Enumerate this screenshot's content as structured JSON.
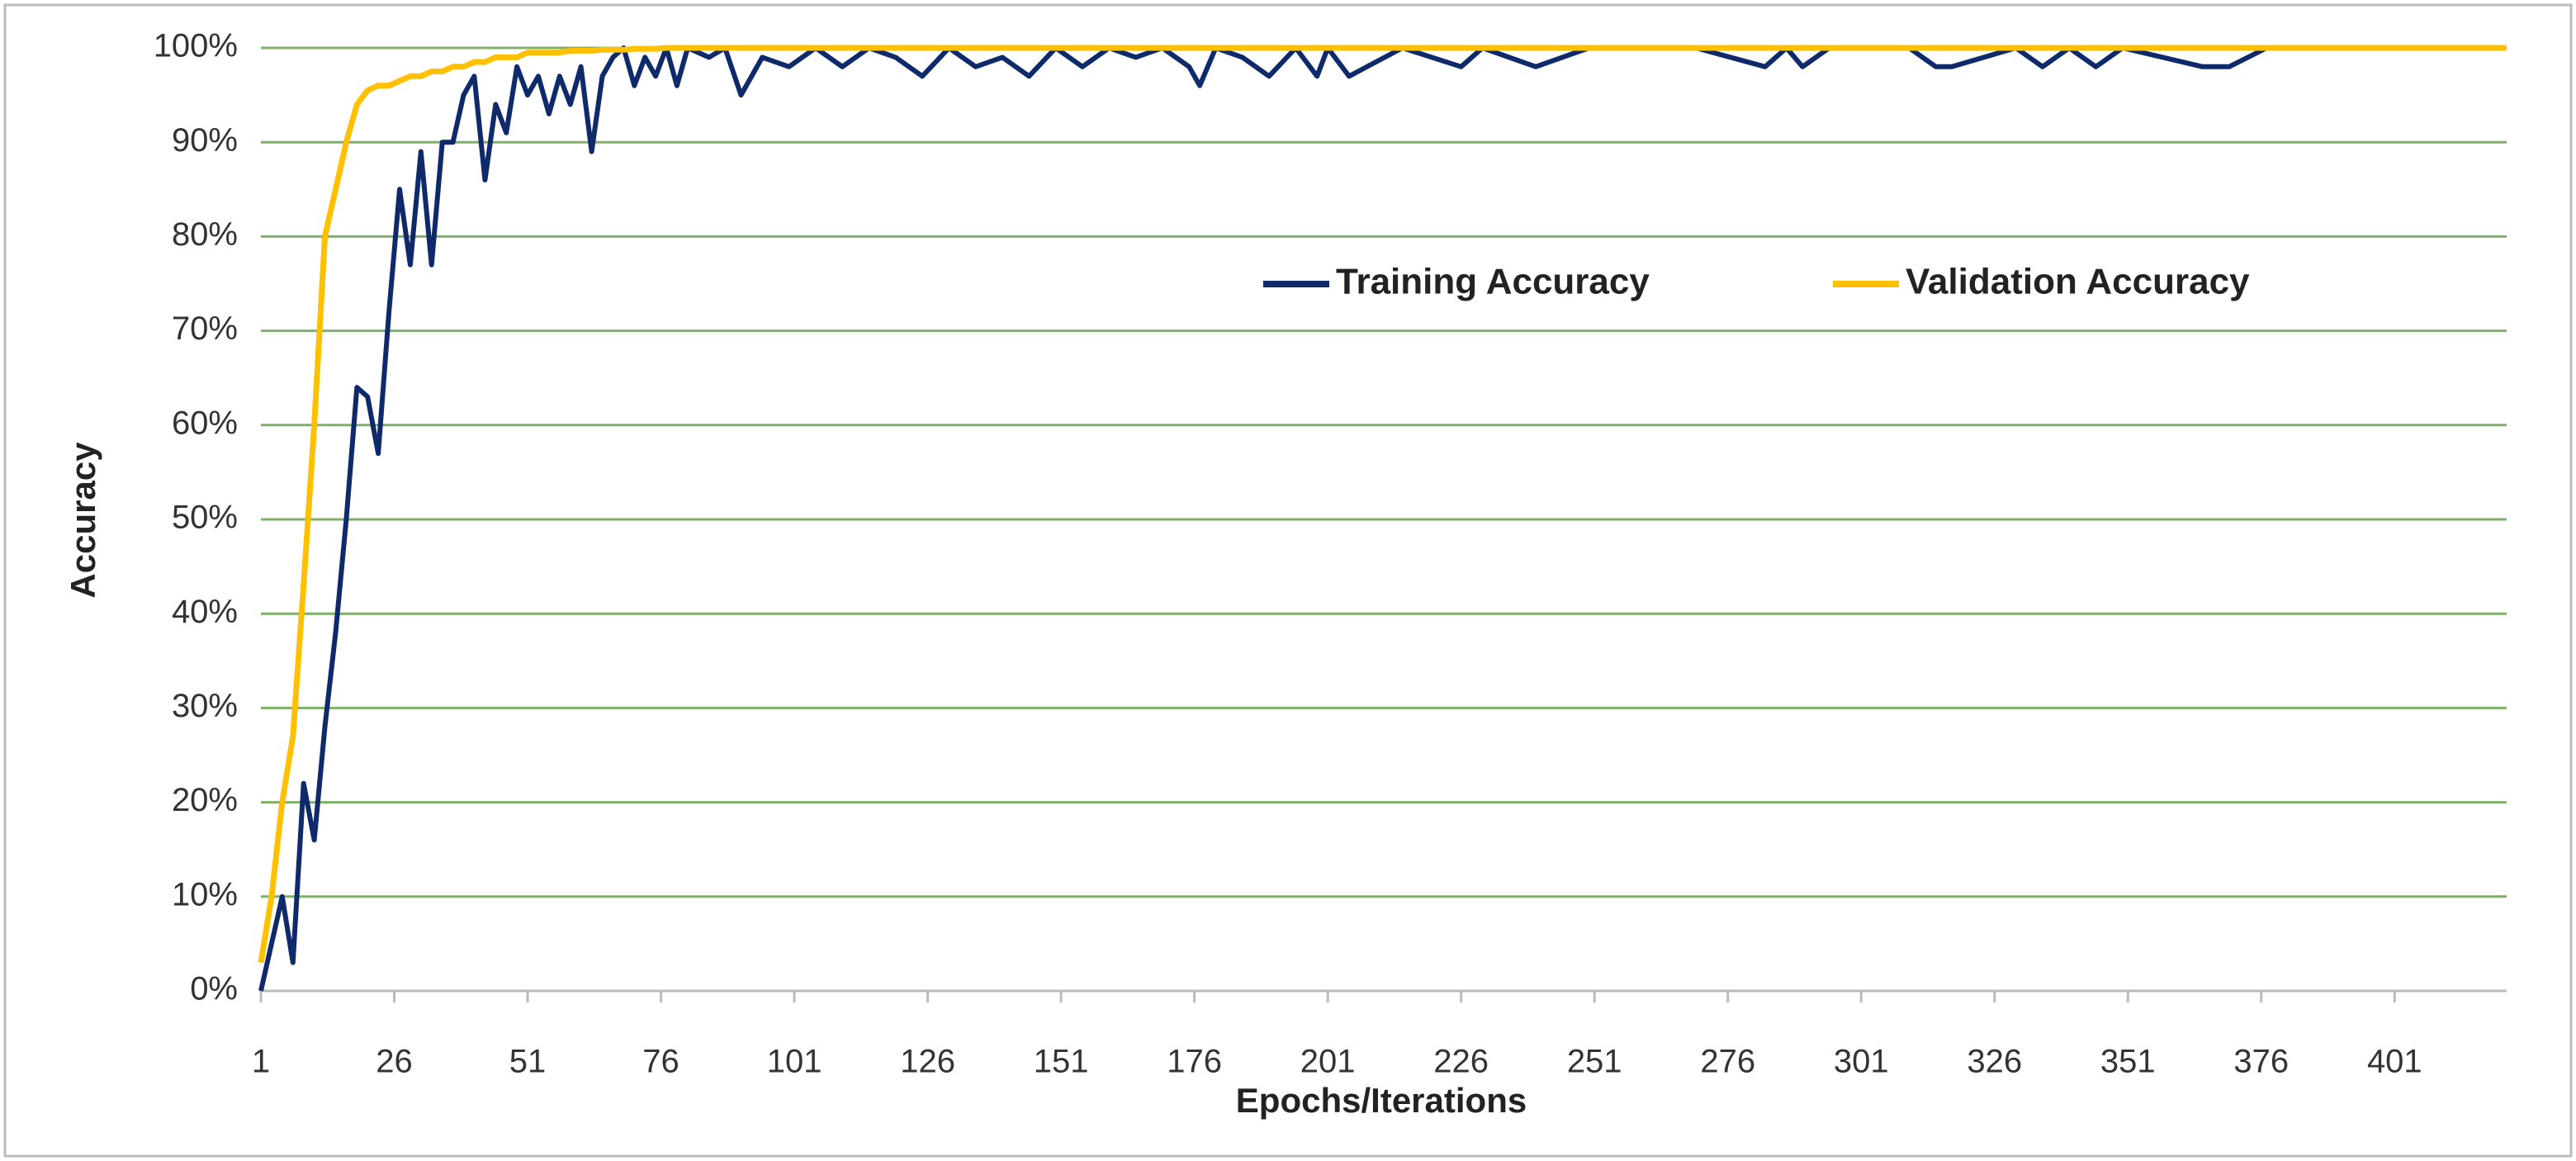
{
  "chart_data": {
    "type": "line",
    "x_label": "Epochs/Iterations",
    "y_label": "Accuracy",
    "x": [
      1,
      3,
      5,
      7,
      9,
      11,
      13,
      15,
      17,
      19,
      21,
      23,
      25,
      27,
      29,
      31,
      33,
      35,
      37,
      39,
      41,
      43,
      45,
      47,
      49,
      51,
      53,
      55,
      57,
      59,
      61,
      63,
      65,
      67,
      69,
      71,
      73,
      75,
      77,
      79,
      81,
      85,
      88,
      91,
      95,
      100,
      105,
      110,
      115,
      120,
      125,
      130,
      135,
      140,
      145,
      150,
      155,
      160,
      165,
      170,
      175,
      177,
      180,
      185,
      190,
      195,
      199,
      201,
      205,
      215,
      226,
      230,
      240,
      250,
      260,
      270,
      283,
      287,
      290,
      295,
      300,
      310,
      315,
      318,
      330,
      335,
      340,
      345,
      350,
      365,
      370,
      377,
      380,
      390,
      400,
      410,
      422
    ],
    "series": [
      {
        "name": "Training Accuracy",
        "color": "#0f2a6b",
        "values": [
          0,
          5,
          10,
          3,
          22,
          16,
          28,
          38,
          50,
          64,
          63,
          57,
          72,
          85,
          77,
          89,
          77,
          90,
          90,
          95,
          97,
          86,
          94,
          91,
          98,
          95,
          97,
          93,
          97,
          94,
          98,
          89,
          97,
          99,
          100,
          96,
          99,
          97,
          100,
          96,
          100,
          99,
          100,
          95,
          99,
          98,
          100,
          98,
          100,
          99,
          97,
          100,
          98,
          99,
          97,
          100,
          98,
          100,
          99,
          100,
          98,
          96,
          100,
          99,
          97,
          100,
          97,
          100,
          97,
          100,
          98,
          100,
          98,
          100,
          100,
          100,
          98,
          100,
          98,
          100,
          100,
          100,
          98,
          98,
          100,
          98,
          100,
          98,
          100,
          98,
          98,
          100,
          100,
          100,
          100,
          100,
          100
        ]
      },
      {
        "name": "Validation Accuracy",
        "color": "#ffc000",
        "values": [
          3,
          10,
          20,
          27,
          43,
          60,
          80,
          85,
          90,
          94,
          95.5,
          96,
          96,
          96.5,
          97,
          97,
          97.5,
          97.5,
          98,
          98,
          98.5,
          98.5,
          99,
          99,
          99,
          99.5,
          99.5,
          99.5,
          99.5,
          99.7,
          99.7,
          99.7,
          99.8,
          99.8,
          99.8,
          99.9,
          99.9,
          99.9,
          100,
          100,
          100,
          100,
          100,
          100,
          100,
          100,
          100,
          100,
          100,
          100,
          100,
          100,
          100,
          100,
          100,
          100,
          100,
          100,
          100,
          100,
          100,
          100,
          100,
          100,
          100,
          100,
          100,
          100,
          100,
          100,
          100,
          100,
          100,
          100,
          100,
          100,
          100,
          100,
          100,
          100,
          100,
          100,
          100,
          100,
          100,
          100,
          100,
          100,
          100,
          100,
          100,
          100,
          100,
          100,
          100,
          100,
          100
        ]
      }
    ],
    "xlim": [
      1,
      422
    ],
    "xticks": [
      1,
      26,
      51,
      76,
      101,
      126,
      151,
      176,
      201,
      226,
      251,
      276,
      301,
      326,
      351,
      376,
      401
    ],
    "ylim": [
      0,
      100
    ],
    "yticks": [
      {
        "value": 0,
        "label": "0%"
      },
      {
        "value": 10,
        "label": "10%"
      },
      {
        "value": 20,
        "label": "20%"
      },
      {
        "value": 30,
        "label": "30%"
      },
      {
        "value": 40,
        "label": "40%"
      },
      {
        "value": 50,
        "label": "50%"
      },
      {
        "value": 60,
        "label": "60%"
      },
      {
        "value": 70,
        "label": "70%"
      },
      {
        "value": 80,
        "label": "80%"
      },
      {
        "value": 90,
        "label": "90%"
      },
      {
        "value": 100,
        "label": "100%"
      }
    ],
    "grid": true,
    "grid_color": "#7fb069",
    "legend_position": "upper-right"
  }
}
